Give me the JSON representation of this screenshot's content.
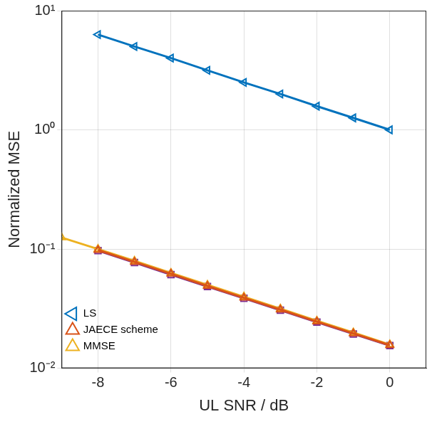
{
  "chart_data": {
    "type": "line",
    "x_label": "UL SNR / dB",
    "y_label": "Normalized MSE",
    "log": "y",
    "grid": true,
    "legend": "top-right",
    "xlim": [
      -9,
      1
    ],
    "xticks": [
      -8,
      -6,
      -4,
      -2,
      0
    ],
    "ylim": [
      0.01,
      10
    ],
    "yticks": [
      {
        "value": 0.01,
        "label": "10⁻²"
      },
      {
        "value": 0.1,
        "label": "10⁻¹"
      },
      {
        "value": 1,
        "label": "10⁰"
      },
      {
        "value": 10,
        "label": "10¹"
      }
    ],
    "series": [
      {
        "name": "LS",
        "color": "#0072bd",
        "marker": "triangle-left",
        "x": [
          -8,
          -7,
          -6,
          -5,
          -4,
          -3,
          -2,
          -1,
          0
        ],
        "values": [
          6.3,
          5.0,
          4.0,
          3.16,
          2.5,
          2.0,
          1.58,
          1.26,
          1.0
        ]
      },
      {
        "name": "JAECE scheme",
        "color": "#d95319",
        "marker": "triangle",
        "x": [
          -8,
          -7,
          -6,
          -5,
          -4,
          -3,
          -2,
          -1,
          0
        ],
        "values": [
          0.098,
          0.078,
          0.062,
          0.049,
          0.039,
          0.031,
          0.0246,
          0.0196,
          0.0156
        ]
      },
      {
        "name": "MMSE",
        "color": "#edb120",
        "marker": "triangle",
        "x": [
          -9,
          -8,
          -7,
          -6,
          -5,
          -4,
          -3,
          -2,
          -1,
          0
        ],
        "values": [
          0.125,
          0.1,
          0.0795,
          0.063,
          0.05,
          0.0398,
          0.0316,
          0.025,
          0.0199,
          0.0158
        ]
      },
      {
        "color": "#7e2f8e",
        "marker": "square",
        "x": [
          -8,
          -7,
          -6,
          -5,
          -4,
          -3,
          -2,
          -1,
          0
        ],
        "values": [
          0.097,
          0.077,
          0.061,
          0.0485,
          0.0386,
          0.0307,
          0.0244,
          0.0194,
          0.0155
        ]
      }
    ]
  }
}
